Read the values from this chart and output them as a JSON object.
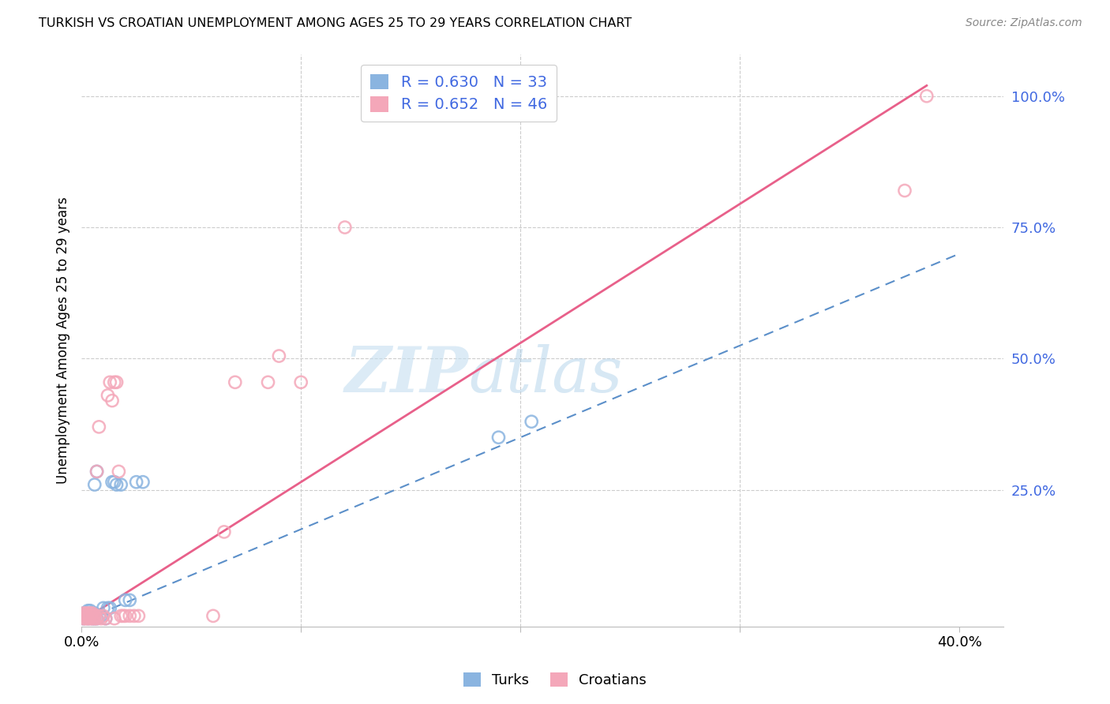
{
  "title": "TURKISH VS CROATIAN UNEMPLOYMENT AMONG AGES 25 TO 29 YEARS CORRELATION CHART",
  "source": "Source: ZipAtlas.com",
  "ylabel": "Unemployment Among Ages 25 to 29 years",
  "xlim": [
    0.0,
    0.42
  ],
  "ylim": [
    -0.01,
    1.08
  ],
  "turks_R": 0.63,
  "turks_N": 33,
  "croatians_R": 0.652,
  "croatians_N": 46,
  "turks_color": "#8ab4e0",
  "croatians_color": "#f4a7b9",
  "turks_line_color": "#5b8fc9",
  "croatians_line_color": "#e8608a",
  "legend_text_color": "#4169e1",
  "background_color": "#ffffff",
  "turks_x": [
    0.001,
    0.001,
    0.002,
    0.002,
    0.003,
    0.003,
    0.003,
    0.004,
    0.004,
    0.005,
    0.005,
    0.005,
    0.006,
    0.006,
    0.006,
    0.007,
    0.007,
    0.008,
    0.009,
    0.01,
    0.011,
    0.012,
    0.013,
    0.014,
    0.015,
    0.016,
    0.018,
    0.02,
    0.022,
    0.025,
    0.028,
    0.19,
    0.205
  ],
  "turks_y": [
    0.015,
    0.005,
    0.01,
    0.015,
    0.005,
    0.01,
    0.02,
    0.015,
    0.02,
    0.005,
    0.01,
    0.015,
    0.005,
    0.015,
    0.26,
    0.005,
    0.285,
    0.01,
    0.01,
    0.025,
    0.005,
    0.025,
    0.025,
    0.265,
    0.265,
    0.26,
    0.26,
    0.04,
    0.04,
    0.265,
    0.265,
    0.35,
    0.38
  ],
  "croatians_x": [
    0.001,
    0.001,
    0.001,
    0.002,
    0.002,
    0.002,
    0.003,
    0.003,
    0.003,
    0.004,
    0.004,
    0.004,
    0.005,
    0.005,
    0.005,
    0.006,
    0.006,
    0.007,
    0.007,
    0.008,
    0.008,
    0.009,
    0.01,
    0.011,
    0.012,
    0.013,
    0.014,
    0.015,
    0.015,
    0.016,
    0.017,
    0.018,
    0.019,
    0.02,
    0.022,
    0.024,
    0.026,
    0.06,
    0.065,
    0.07,
    0.085,
    0.09,
    0.1,
    0.12,
    0.375,
    0.385
  ],
  "croatians_y": [
    0.005,
    0.01,
    0.015,
    0.005,
    0.01,
    0.015,
    0.005,
    0.01,
    0.015,
    0.005,
    0.01,
    0.015,
    0.005,
    0.01,
    0.015,
    0.005,
    0.01,
    0.005,
    0.285,
    0.01,
    0.37,
    0.005,
    0.01,
    0.005,
    0.43,
    0.455,
    0.42,
    0.005,
    0.455,
    0.455,
    0.285,
    0.01,
    0.01,
    0.01,
    0.01,
    0.01,
    0.01,
    0.01,
    0.17,
    0.455,
    0.455,
    0.505,
    0.455,
    0.75,
    0.82,
    1.0
  ],
  "turks_line_x": [
    0.0,
    0.4
  ],
  "turks_line_y": [
    0.0,
    0.7
  ],
  "croatians_line_x": [
    0.0,
    0.385
  ],
  "croatians_line_y": [
    0.0,
    1.02
  ],
  "watermark_zip": "ZIP",
  "watermark_atlas": "atlas",
  "grid_color": "#cccccc"
}
